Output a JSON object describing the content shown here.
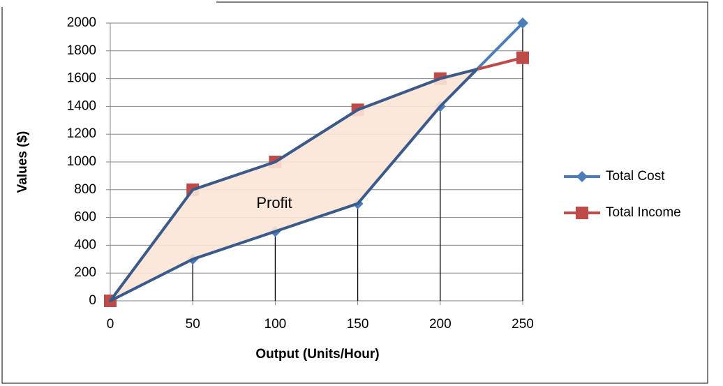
{
  "chart_data": {
    "type": "line",
    "xlabel": "Output (Units/Hour)",
    "ylabel": "Values ($)",
    "annotation": "Profit",
    "x": [
      0,
      50,
      100,
      150,
      200,
      250
    ],
    "series": [
      {
        "name": "Total Cost",
        "color": "#4a7ebb",
        "marker": "diamond",
        "values": [
          0,
          300,
          500,
          700,
          1400,
          2000
        ]
      },
      {
        "name": "Total Income",
        "color": "#be4b48",
        "marker": "square",
        "values": [
          0,
          800,
          1000,
          1375,
          1600,
          1750
        ]
      }
    ],
    "xlim": [
      0,
      250
    ],
    "xticks": [
      0,
      50,
      100,
      150,
      200,
      250
    ],
    "ylim": [
      0,
      2000
    ],
    "yticks": [
      0,
      200,
      400,
      600,
      800,
      1000,
      1200,
      1400,
      1600,
      1800,
      2000
    ],
    "grid": true,
    "legend": "right"
  }
}
